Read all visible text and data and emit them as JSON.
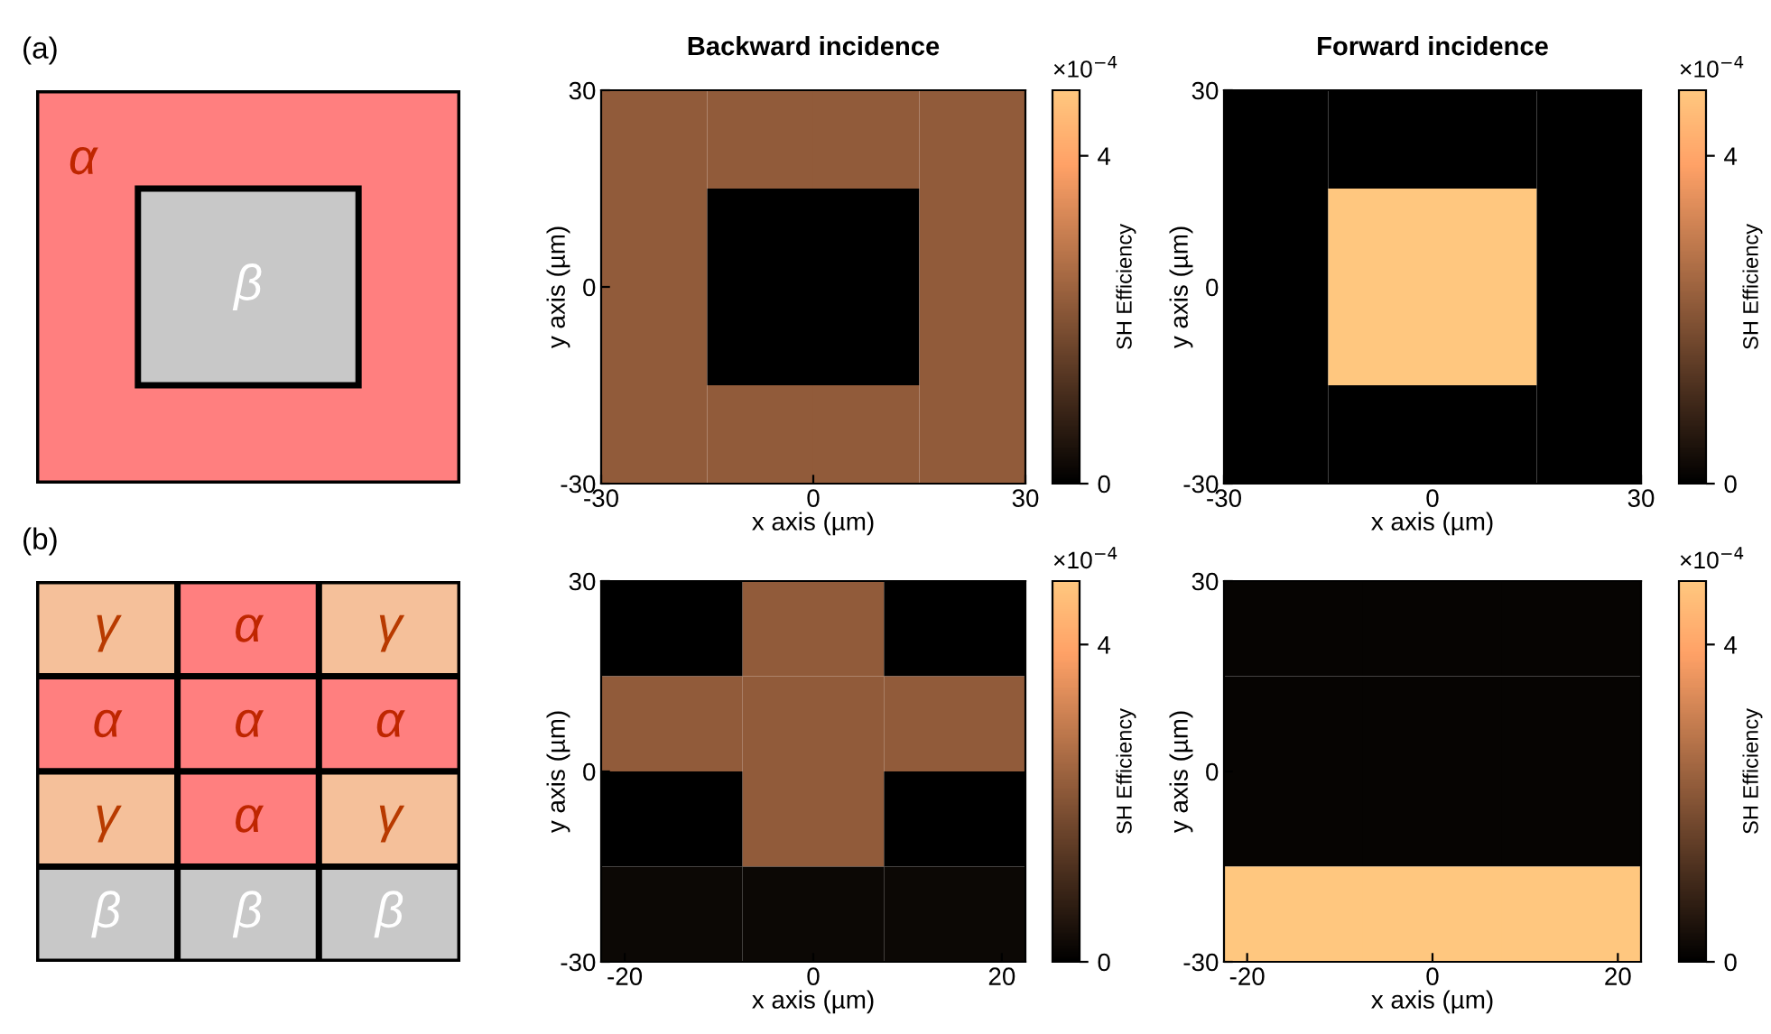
{
  "chart_data": [
    {
      "type": "other",
      "title": "(a)",
      "annotations": [
        "α",
        "β"
      ],
      "colors": [
        "#ff7f7f",
        "#c8c8c8"
      ]
    },
    {
      "type": "heatmap",
      "title": "Backward incidence",
      "xlabel": "x axis (µm)",
      "ylabel": "y axis (µm)",
      "clabel": "SH Efficiency",
      "annotations": [
        "×10$^{−4}$"
      ],
      "x": [
        -22.5,
        -7.5,
        7.5,
        22.5
      ],
      "y": [
        22.5,
        7.5,
        -7.5,
        -22.5
      ],
      "cells": [
        [
          2.2,
          2.2,
          2.2,
          2.2
        ],
        [
          2.2,
          0,
          0,
          2.2
        ],
        [
          2.2,
          0,
          0,
          2.2
        ],
        [
          2.2,
          2.2,
          2.2,
          2.2
        ]
      ],
      "xlim": [
        -30,
        30
      ],
      "ylim": [
        -30,
        30
      ],
      "xticks": [
        -30,
        0,
        30
      ],
      "yticks": [
        -30,
        0,
        30
      ],
      "clim": [
        0,
        4.8
      ],
      "cticks": [
        0,
        4
      ]
    },
    {
      "type": "heatmap",
      "title": "Forward incidence",
      "xlabel": "x axis (µm)",
      "ylabel": "y axis (µm)",
      "clabel": "SH Efficiency",
      "annotations": [
        "×10$^{−4}$"
      ],
      "x": [
        -22.5,
        -7.5,
        7.5,
        22.5
      ],
      "y": [
        22.5,
        7.5,
        -7.5,
        -22.5
      ],
      "cells": [
        [
          0,
          0,
          0,
          0
        ],
        [
          0,
          4.8,
          4.8,
          0
        ],
        [
          0,
          4.8,
          4.8,
          0
        ],
        [
          0,
          0,
          0,
          0
        ]
      ],
      "xlim": [
        -30,
        30
      ],
      "ylim": [
        -30,
        30
      ],
      "xticks": [
        -30,
        0,
        30
      ],
      "yticks": [
        -30,
        0,
        30
      ],
      "clim": [
        0,
        4.8
      ],
      "cticks": [
        0,
        4
      ]
    },
    {
      "type": "other",
      "title": "(b)",
      "annotations": [
        "γ",
        "α",
        "γ",
        "α",
        "α",
        "α",
        "γ",
        "α",
        "γ",
        "β",
        "β",
        "β"
      ],
      "colors": [
        "#f5c09a",
        "#ff7f7f",
        "#f5c09a",
        "#ff7f7f",
        "#ff7f7f",
        "#ff7f7f",
        "#f5c09a",
        "#ff7f7f",
        "#f5c09a",
        "#c8c8c8",
        "#c8c8c8",
        "#c8c8c8"
      ]
    },
    {
      "type": "heatmap",
      "xlabel": "x axis (µm)",
      "ylabel": "y axis (µm)",
      "clabel": "SH Efficiency",
      "annotations": [
        "×10$^{−4}$"
      ],
      "x": [
        -15,
        0,
        15
      ],
      "y": [
        22.5,
        7.5,
        -7.5,
        -22.5
      ],
      "cells": [
        [
          0,
          2.2,
          0
        ],
        [
          2.2,
          2.2,
          2.2
        ],
        [
          0,
          2.2,
          0
        ],
        [
          0.2,
          0.2,
          0.2
        ]
      ],
      "xlim": [
        -22.5,
        22.5
      ],
      "ylim": [
        -30,
        30
      ],
      "xticks": [
        -20,
        0,
        20
      ],
      "yticks": [
        -30,
        0,
        30
      ],
      "clim": [
        0,
        4.8
      ],
      "cticks": [
        0,
        4
      ]
    },
    {
      "type": "heatmap",
      "xlabel": "x axis (µm)",
      "ylabel": "y axis (µm)",
      "clabel": "SH Efficiency",
      "annotations": [
        "×10$^{−4}$"
      ],
      "x": [
        -15,
        0,
        15
      ],
      "y": [
        22.5,
        7.5,
        -7.5,
        -22.5
      ],
      "cells": [
        [
          0.1,
          0.1,
          0.1
        ],
        [
          0.1,
          0.1,
          0.1
        ],
        [
          0.1,
          0.1,
          0.1
        ],
        [
          4.8,
          4.8,
          4.8
        ]
      ],
      "xlim": [
        -22.5,
        22.5
      ],
      "ylim": [
        -30,
        30
      ],
      "xticks": [
        -20,
        0,
        20
      ],
      "yticks": [
        -30,
        0,
        30
      ],
      "clim": [
        0,
        4.8
      ],
      "cticks": [
        0,
        4
      ]
    }
  ]
}
